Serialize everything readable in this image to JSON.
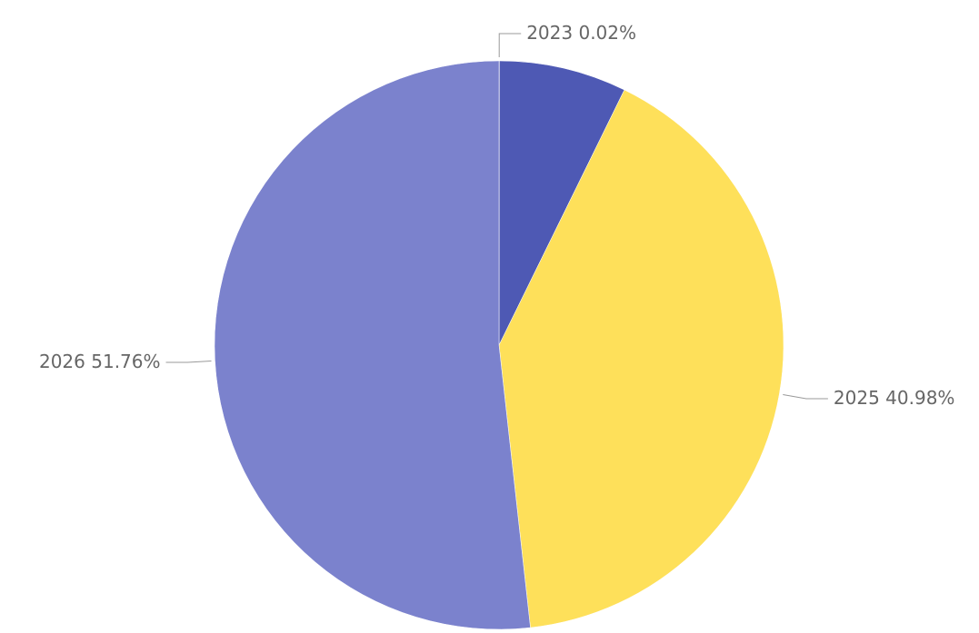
{
  "chart_data": {
    "type": "pie",
    "categories": [
      "2023",
      null,
      "2025",
      "2026"
    ],
    "values": [
      0.02,
      7.24,
      40.98,
      51.76
    ],
    "value_labels": [
      "0.02%",
      null,
      "40.98%",
      "51.76%"
    ],
    "colors": [
      "#91cc75",
      "#4e59b4",
      "#fee05a",
      "#7b82cd"
    ]
  }
}
